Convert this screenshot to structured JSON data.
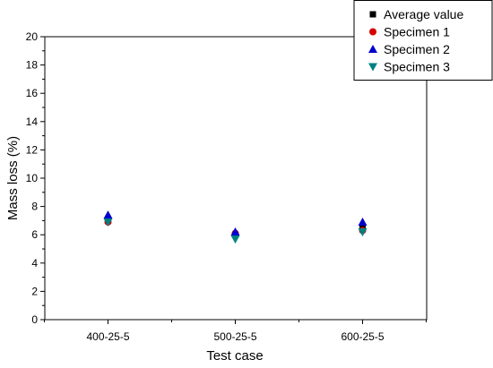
{
  "chart_data": {
    "type": "scatter",
    "title": "",
    "xlabel": "Test case",
    "ylabel": "Mass loss (%)",
    "categories": [
      "400-25-5",
      "500-25-5",
      "600-25-5"
    ],
    "ylim": [
      0,
      20
    ],
    "yticks": [
      "0",
      "2",
      "4",
      "6",
      "8",
      "10",
      "12",
      "14",
      "16",
      "18",
      "20"
    ],
    "grid": false,
    "legend_position": "top-right",
    "series": [
      {
        "name": "Average value",
        "marker": "square",
        "color": "#000000",
        "values": [
          7.0,
          6.0,
          6.5
        ]
      },
      {
        "name": "Specimen 1",
        "marker": "circle",
        "color": "#d40000",
        "values": [
          6.9,
          6.1,
          6.3
        ]
      },
      {
        "name": "Specimen 2",
        "marker": "triangle-up",
        "color": "#0000cc",
        "values": [
          7.4,
          6.2,
          6.9
        ]
      },
      {
        "name": "Specimen 3",
        "marker": "triangle-down",
        "color": "#008080",
        "values": [
          6.9,
          5.7,
          6.2
        ]
      }
    ]
  }
}
